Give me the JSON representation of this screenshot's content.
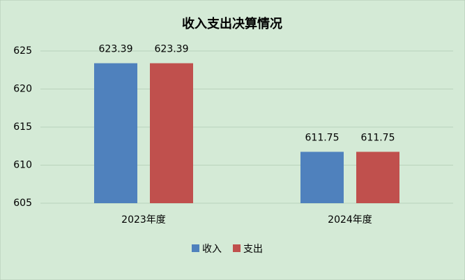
{
  "chart_data": {
    "type": "bar",
    "title": "收入支出决算情况",
    "categories": [
      "2023年度",
      "2024年度"
    ],
    "series": [
      {
        "name": "收入",
        "color": "#4f81bd",
        "values": [
          623.39,
          611.75
        ]
      },
      {
        "name": "支出",
        "color": "#c0504d",
        "values": [
          623.39,
          611.75
        ]
      }
    ],
    "ylim": [
      605,
      625
    ],
    "yticks": [
      605,
      610,
      615,
      620,
      625
    ],
    "grid": true,
    "legend": "bottom"
  }
}
